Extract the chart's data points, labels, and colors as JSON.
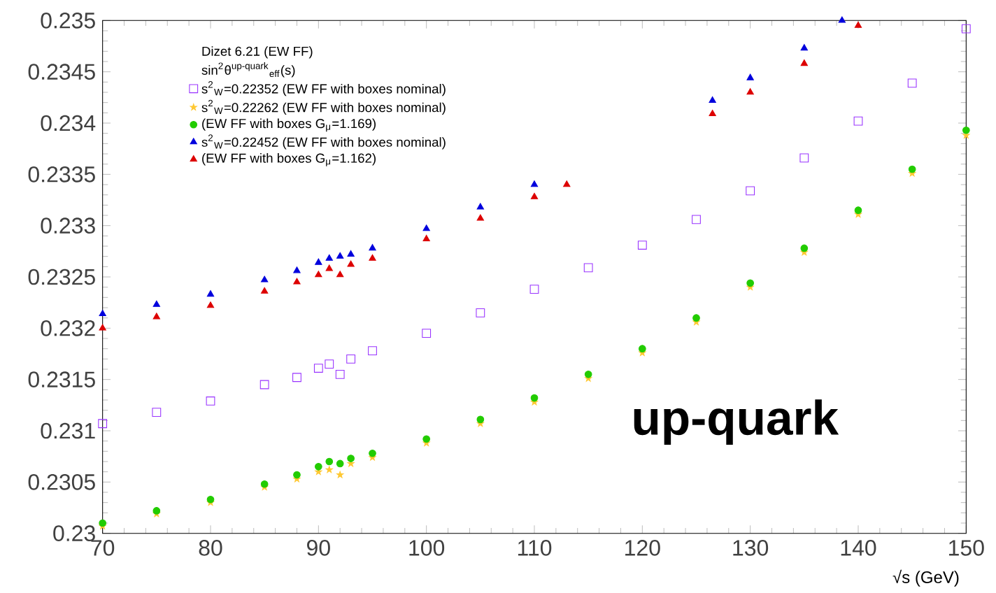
{
  "chart_data": {
    "type": "scatter",
    "legend_title": "Dizet 6.21 (EW FF)",
    "xlabel": "√s (GeV)",
    "annotations": [
      "sin$^{2}$θ$^{up-quark}$$_{eff}$(s)",
      "up-quark"
    ],
    "xlim": [
      70,
      150
    ],
    "ylim": [
      0.23,
      0.235
    ],
    "xticks": [
      70,
      80,
      90,
      100,
      110,
      120,
      130,
      140,
      150
    ],
    "yticks": [
      0.23,
      0.2305,
      0.231,
      0.2315,
      0.232,
      0.2325,
      0.233,
      0.2335,
      0.234,
      0.2345,
      0.235
    ],
    "grid": false,
    "legend": "top left",
    "series": [
      {
        "name": "s$^{2}$$_{W}$=0.22352 (EW FF with boxes nominal)",
        "color": "#9933ff",
        "marker": "square",
        "x": [
          70,
          75,
          80,
          85,
          88,
          90,
          91,
          92,
          93,
          95,
          100,
          105,
          110,
          115,
          120,
          125,
          130,
          135,
          140,
          145,
          150
        ],
        "values": [
          0.23107,
          0.23118,
          0.23129,
          0.23145,
          0.23152,
          0.23161,
          0.23165,
          0.23155,
          0.2317,
          0.23178,
          0.23195,
          0.23215,
          0.23238,
          0.23259,
          0.23281,
          0.23306,
          0.23334,
          0.23366,
          0.23402,
          0.23439,
          0.23492
        ]
      },
      {
        "name": "s$^{2}$$_{W}$=0.22262 (EW FF with boxes  nominal)",
        "color": "#ffc832",
        "marker": "star",
        "x": [
          70,
          75,
          80,
          85,
          88,
          90,
          91,
          92,
          93,
          95,
          100,
          105,
          110,
          115,
          120,
          125,
          130,
          135,
          140,
          145,
          150
        ],
        "values": [
          0.23007,
          0.23019,
          0.2303,
          0.23045,
          0.23053,
          0.2306,
          0.23062,
          0.23057,
          0.23068,
          0.23074,
          0.23088,
          0.23107,
          0.23128,
          0.23151,
          0.23176,
          0.23206,
          0.2324,
          0.23274,
          0.23311,
          0.23351,
          0.23388
        ]
      },
      {
        "name": "(EW FF with boxes  G$_{μ}$=1.169)",
        "color": "#22cc00",
        "marker": "circle",
        "x": [
          70,
          75,
          80,
          85,
          88,
          90,
          91,
          92,
          93,
          95,
          100,
          105,
          110,
          115,
          120,
          125,
          130,
          135,
          140,
          145,
          150
        ],
        "values": [
          0.2301,
          0.23022,
          0.23033,
          0.23048,
          0.23057,
          0.23065,
          0.2307,
          0.23068,
          0.23073,
          0.23078,
          0.23092,
          0.23111,
          0.23132,
          0.23155,
          0.2318,
          0.2321,
          0.23244,
          0.23278,
          0.23315,
          0.23355,
          0.23393
        ]
      },
      {
        "name": "s$^{2}$$_{W}$=0.22452 (EW FF with boxes nominal)",
        "color": "#0000dd",
        "marker": "triangle",
        "x": [
          70,
          75,
          80,
          85,
          88,
          90,
          91,
          92,
          93,
          95,
          100,
          105,
          110,
          126.5,
          130,
          135,
          138.5
        ],
        "values": [
          0.23214,
          0.23223,
          0.23233,
          0.23247,
          0.23256,
          0.23264,
          0.23268,
          0.2327,
          0.23272,
          0.23278,
          0.23297,
          0.23318,
          0.2334,
          0.23422,
          0.23444,
          0.23473,
          0.235
        ]
      },
      {
        "name": "(EW FF with boxes G$_{μ}$=1.162)",
        "color": "#dd0000",
        "marker": "triangle",
        "x": [
          70,
          75,
          80,
          85,
          88,
          90,
          91,
          92,
          93,
          95,
          100,
          105,
          110,
          113,
          126.5,
          130,
          135,
          140
        ],
        "values": [
          0.232,
          0.23211,
          0.23222,
          0.23236,
          0.23245,
          0.23252,
          0.23258,
          0.23252,
          0.23262,
          0.23268,
          0.23287,
          0.23307,
          0.23328,
          0.2334,
          0.23409,
          0.2343,
          0.23458,
          0.23495
        ]
      }
    ]
  }
}
